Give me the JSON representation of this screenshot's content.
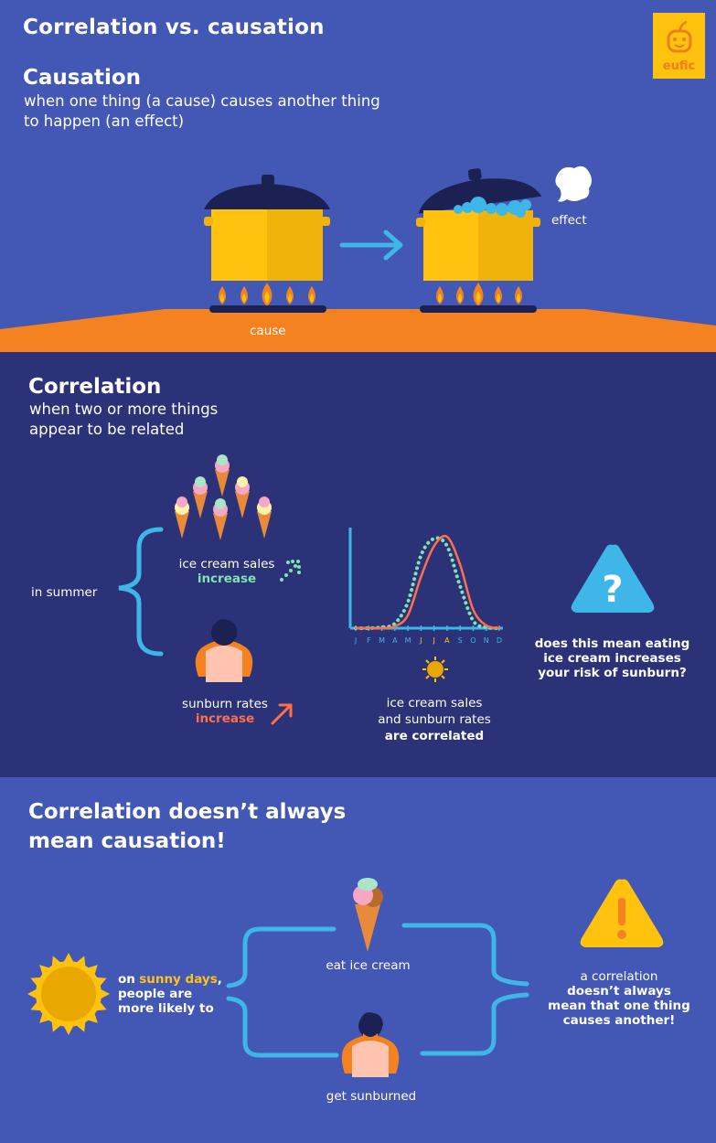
{
  "title": "Correlation vs. causation",
  "logo": {
    "text": "eufic"
  },
  "causation": {
    "heading": "Causation",
    "description_line1": "when one thing (a cause) causes another thing",
    "description_line2": "to happen (an effect)",
    "cause_label": "cause",
    "effect_label": "effect"
  },
  "correlation": {
    "heading": "Correlation",
    "description_line1": "when two or more things",
    "description_line2": "appear to be related",
    "in_summer": "in summer",
    "ice_cream_sales": "ice cream sales",
    "increase_1": "increase",
    "sunburn_rates": "sunburn rates",
    "increase_2": "increase",
    "correlated_line1": "ice cream sales",
    "correlated_line2": "and sunburn rates",
    "correlated_line3": "are correlated",
    "question_line1": "does this mean eating",
    "question_line2": "ice cream increases",
    "question_line3": "your risk of sunburn?"
  },
  "chart_data": {
    "type": "line",
    "categories": [
      "J",
      "F",
      "M",
      "A",
      "M",
      "J",
      "J",
      "A",
      "S",
      "O",
      "N",
      "D"
    ],
    "highlight_color": "#ffc21a",
    "axis_color": "#3fb6e8",
    "series": [
      {
        "color": "#7fe3b2",
        "style": "dotted",
        "values": [
          0,
          0,
          1,
          5,
          28,
          78,
          96,
          88,
          45,
          8,
          1,
          0
        ]
      },
      {
        "color": "#ff6f4a",
        "style": "solid",
        "values": [
          0,
          0,
          0,
          2,
          14,
          55,
          88,
          98,
          68,
          20,
          3,
          0
        ]
      }
    ]
  },
  "conclusion": {
    "heading_line1": "Correlation doesn’t always",
    "heading_line2": "mean causation!",
    "on": "on",
    "sunny_days": "sunny days",
    "comma": ",",
    "people_line1": "people are",
    "people_line2": "more likely to",
    "eat_ice_cream": "eat ice cream",
    "get_sunburned": "get sunburned",
    "warning_line1": "a correlation",
    "warning_line2": "doesn’t always",
    "warning_line3": "mean that one thing",
    "warning_line4": "causes another!"
  },
  "colors": {
    "background_light": "#4357b4",
    "background_dark": "#2b3277",
    "orange": "#f58220",
    "yellow": "#ffc20e",
    "blue_accent": "#3fb6e8",
    "navy": "#1b2152"
  }
}
